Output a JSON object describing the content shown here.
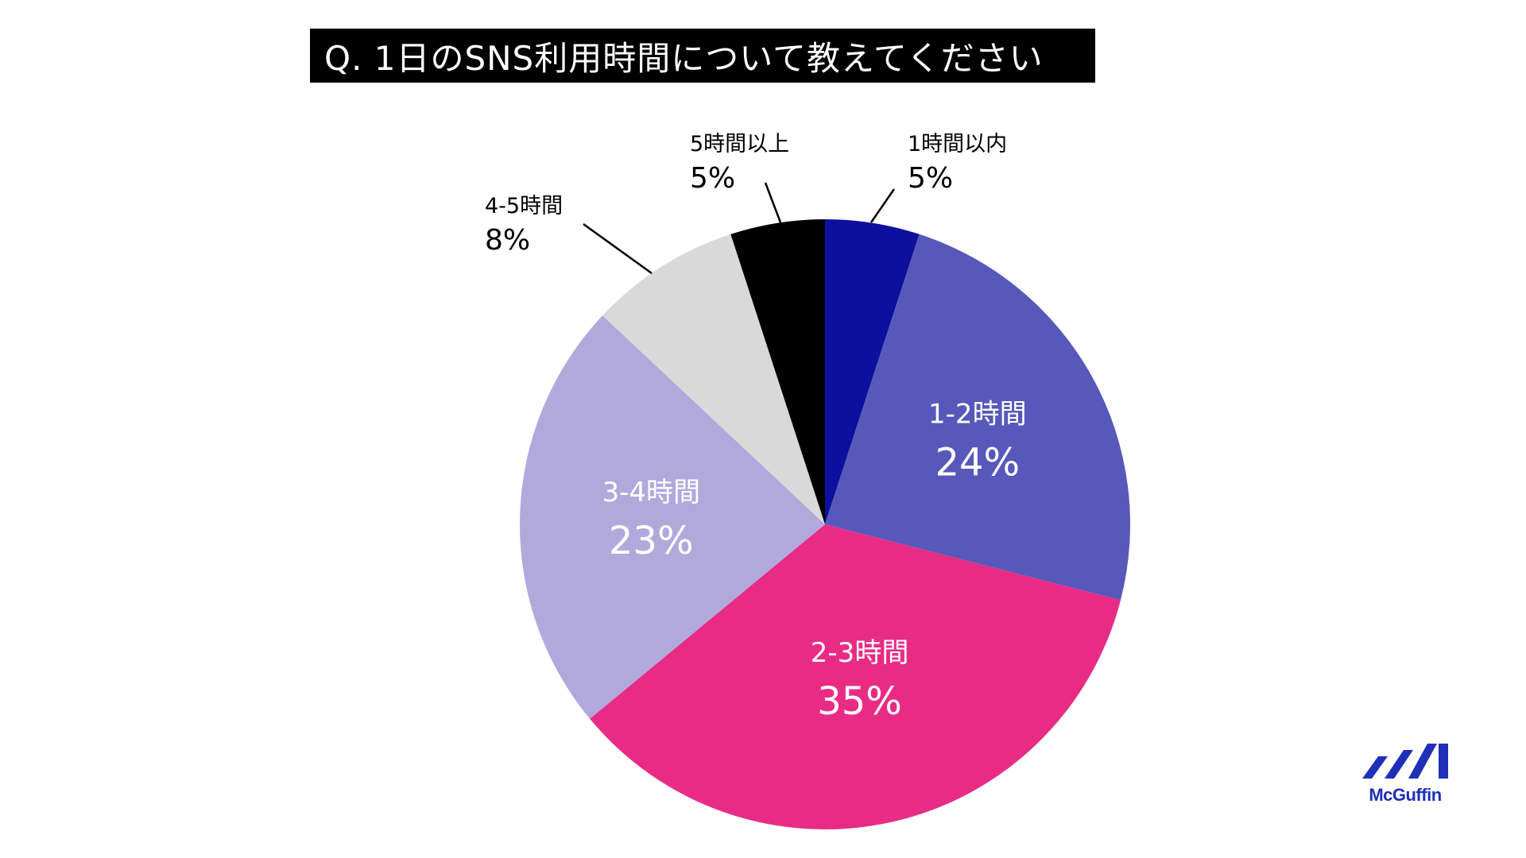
{
  "title": "Q. 1日のSNS利用時間について教えてください",
  "brand": {
    "name": "McGuffin",
    "color": "#1f2fb8",
    "icon": "mcguffin-logo-mark"
  },
  "chart_data": {
    "type": "pie",
    "title": "Q. 1日のSNS利用時間について教えてください",
    "start": "12 o'clock",
    "direction": "clockwise",
    "slices": [
      {
        "label": "1時間以内",
        "value": 5,
        "display": "5%",
        "color": "#0d0f9e",
        "label_position": "outside"
      },
      {
        "label": "1-2時間",
        "value": 24,
        "display": "24%",
        "color": "#5858ba",
        "label_position": "inside"
      },
      {
        "label": "2-3時間",
        "value": 35,
        "display": "35%",
        "color": "#e82c86",
        "label_position": "inside"
      },
      {
        "label": "3-4時間",
        "value": 23,
        "display": "23%",
        "color": "#b1a9dc",
        "label_position": "inside"
      },
      {
        "label": "4-5時間",
        "value": 8,
        "display": "8%",
        "color": "#d9d9d9",
        "label_position": "outside"
      },
      {
        "label": "5時間以上",
        "value": 5,
        "display": "5%",
        "color": "#000000",
        "label_position": "outside"
      }
    ]
  }
}
